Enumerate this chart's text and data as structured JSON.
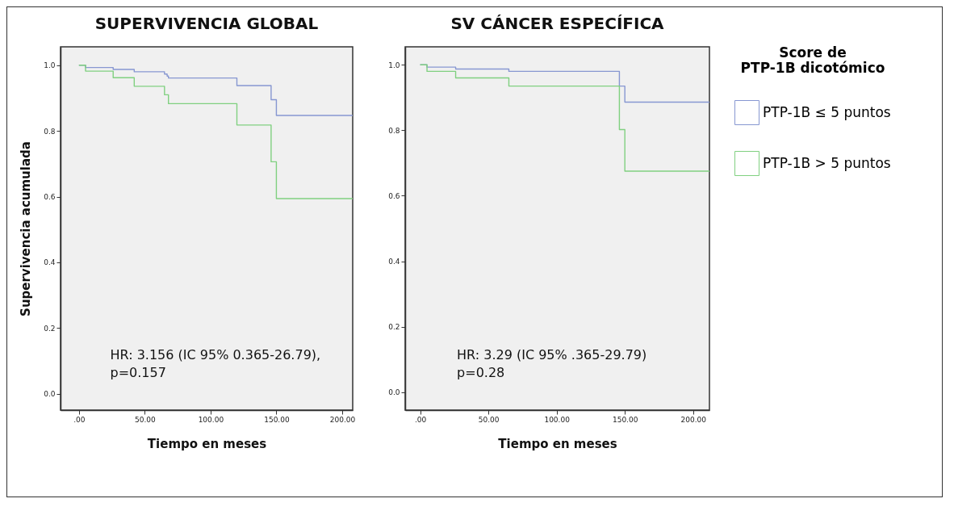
{
  "chart_data": [
    {
      "type": "step",
      "title": "SUPERVIVENCIA GLOBAL",
      "xlabel": "Tiempo en meses",
      "ylabel": "Supervivencia acumulada",
      "x": [
        0,
        5,
        26,
        42,
        65,
        67,
        68,
        120,
        146,
        150,
        208
      ],
      "series": [
        {
          "color": "#8797d1",
          "values": [
            1.0,
            0.993,
            0.987,
            0.98,
            0.973,
            0.967,
            0.961,
            0.938,
            0.895,
            0.847,
            0.847
          ]
        },
        {
          "color": "#80d080",
          "values": [
            1.0,
            0.982,
            0.962,
            0.936,
            0.91,
            0.91,
            0.883,
            0.818,
            0.706,
            0.594,
            0.594
          ]
        }
      ],
      "xlim": [
        -14,
        208
      ],
      "xticks": [
        {
          "value": 0,
          "label": ".00"
        },
        {
          "value": 50,
          "label": "50.00"
        },
        {
          "value": 100,
          "label": "100.00"
        },
        {
          "value": 150,
          "label": "150.00"
        },
        {
          "value": 200,
          "label": "200.00"
        }
      ],
      "ylim": [
        -0.05,
        1.056
      ],
      "yticks": [
        {
          "value": 0,
          "label": "0.0"
        },
        {
          "value": 0.2,
          "label": "0.2"
        },
        {
          "value": 0.4,
          "label": "0.4"
        },
        {
          "value": 0.6,
          "label": "0.6"
        },
        {
          "value": 0.8,
          "label": "0.8"
        },
        {
          "value": 1,
          "label": "1.0"
        }
      ],
      "annotations": [
        "HR: 3.156 (IC 95% 0.365-26.79),\np=0.157"
      ]
    },
    {
      "type": "step",
      "title": "SV CÁNCER ESPECÍFICA",
      "xlabel": "Tiempo en meses",
      "legend_title": "Score de PTP-1B dicotómico",
      "legend": "right",
      "x": [
        0,
        5,
        26,
        65,
        146,
        150,
        212
      ],
      "series": [
        {
          "name": "PTP-1B ≤ 5 puntos",
          "color": "#8797d1",
          "values": [
            1.0,
            0.993,
            0.987,
            0.98,
            0.935,
            0.886,
            0.886
          ]
        },
        {
          "name": "PTP-1B > 5 puntos",
          "color": "#80d080",
          "values": [
            1.0,
            0.98,
            0.96,
            0.935,
            0.802,
            0.675,
            0.675
          ]
        }
      ],
      "xlim": [
        -11,
        212
      ],
      "xticks": [
        {
          "value": 0,
          "label": ".00"
        },
        {
          "value": 50,
          "label": "50.00"
        },
        {
          "value": 100,
          "label": "100.00"
        },
        {
          "value": 150,
          "label": "150.00"
        },
        {
          "value": 200,
          "label": "200.00"
        }
      ],
      "ylim": [
        -0.055,
        1.055
      ],
      "yticks": [
        {
          "value": 0,
          "label": "0.0"
        },
        {
          "value": 0.2,
          "label": "0.2"
        },
        {
          "value": 0.4,
          "label": "0.4"
        },
        {
          "value": 0.6,
          "label": "0.6"
        },
        {
          "value": 0.8,
          "label": "0.8"
        },
        {
          "value": 1,
          "label": "1.0"
        }
      ],
      "annotations": [
        "HR: 3.29 (IC 95% .365-29.79)\np=0.28"
      ]
    }
  ]
}
